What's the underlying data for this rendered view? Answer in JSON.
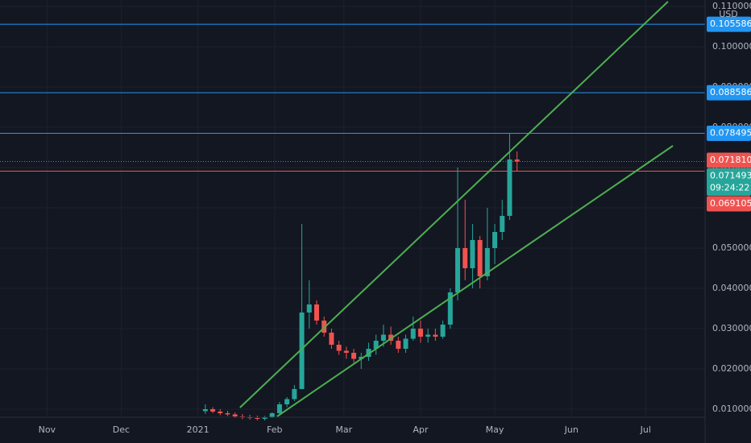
{
  "chart_data": {
    "type": "candlestick",
    "currency": "USD",
    "x": [
      64,
      67,
      70,
      73,
      76,
      79,
      82,
      85,
      88,
      91,
      94,
      97,
      100,
      103,
      106,
      109,
      112,
      115,
      118,
      121,
      124,
      127,
      130,
      133,
      136,
      139,
      142,
      145,
      148,
      151,
      154,
      157,
      160,
      163,
      166,
      169,
      172,
      175,
      178,
      181,
      184,
      187,
      190
    ],
    "open": [
      0.0095,
      0.01,
      0.0094,
      0.009,
      0.0087,
      0.0082,
      0.008,
      0.0078,
      0.0076,
      0.008,
      0.009,
      0.0112,
      0.0125,
      0.015,
      0.034,
      0.036,
      0.032,
      0.029,
      0.026,
      0.0245,
      0.024,
      0.0225,
      0.023,
      0.025,
      0.027,
      0.0285,
      0.027,
      0.025,
      0.0275,
      0.03,
      0.028,
      0.0285,
      0.028,
      0.031,
      0.039,
      0.05,
      0.045,
      0.052,
      0.043,
      0.05,
      0.054,
      0.058,
      0.072
    ],
    "high": [
      0.0112,
      0.0105,
      0.01,
      0.0096,
      0.0092,
      0.0088,
      0.0086,
      0.0084,
      0.0083,
      0.0092,
      0.0118,
      0.013,
      0.016,
      0.056,
      0.042,
      0.037,
      0.033,
      0.03,
      0.027,
      0.0255,
      0.025,
      0.024,
      0.0265,
      0.0285,
      0.031,
      0.0305,
      0.028,
      0.0285,
      0.033,
      0.032,
      0.03,
      0.03,
      0.032,
      0.04,
      0.07,
      0.062,
      0.056,
      0.053,
      0.06,
      0.056,
      0.062,
      0.0785,
      0.074
    ],
    "low": [
      0.0088,
      0.009,
      0.0085,
      0.0083,
      0.0078,
      0.0075,
      0.0074,
      0.0072,
      0.0072,
      0.0078,
      0.0088,
      0.0105,
      0.012,
      0.015,
      0.03,
      0.031,
      0.028,
      0.025,
      0.0235,
      0.0225,
      0.0215,
      0.02,
      0.022,
      0.0235,
      0.0255,
      0.026,
      0.024,
      0.024,
      0.027,
      0.0265,
      0.0265,
      0.027,
      0.0275,
      0.03,
      0.037,
      0.042,
      0.04,
      0.04,
      0.042,
      0.046,
      0.052,
      0.057,
      0.069
    ],
    "close": [
      0.01,
      0.0094,
      0.009,
      0.0087,
      0.0082,
      0.008,
      0.0078,
      0.0076,
      0.008,
      0.009,
      0.0112,
      0.0125,
      0.015,
      0.034,
      0.036,
      0.032,
      0.029,
      0.026,
      0.0245,
      0.024,
      0.0225,
      0.023,
      0.025,
      0.027,
      0.0285,
      0.027,
      0.025,
      0.0275,
      0.03,
      0.028,
      0.0285,
      0.028,
      0.031,
      0.039,
      0.05,
      0.045,
      0.052,
      0.043,
      0.05,
      0.054,
      0.058,
      0.072,
      0.0715
    ],
    "up_color": "#26a69a",
    "down_color": "#ef5350",
    "xlim": [
      -19,
      266
    ],
    "ylim": [
      0.008,
      0.1116
    ],
    "xticks": [
      {
        "value": 0,
        "label": "Nov"
      },
      {
        "value": 30,
        "label": "Dec"
      },
      {
        "value": 61,
        "label": "2021"
      },
      {
        "value": 92,
        "label": "Feb"
      },
      {
        "value": 120,
        "label": "Mar"
      },
      {
        "value": 151,
        "label": "Apr"
      },
      {
        "value": 181,
        "label": "May"
      },
      {
        "value": 212,
        "label": "Jun"
      },
      {
        "value": 242,
        "label": "Jul"
      }
    ],
    "yticks": [
      {
        "value": 0.01,
        "label": "0.010000"
      },
      {
        "value": 0.02,
        "label": "0.020000"
      },
      {
        "value": 0.03,
        "label": "0.030000"
      },
      {
        "value": 0.04,
        "label": "0.040000"
      },
      {
        "value": 0.05,
        "label": "0.050000"
      },
      {
        "value": 0.06,
        "label": "0.060000"
      },
      {
        "value": 0.07,
        "label": "0.070000"
      },
      {
        "value": 0.08,
        "label": "0.080000"
      },
      {
        "value": 0.09,
        "label": "0.090000"
      },
      {
        "value": 0.1,
        "label": "0.100000"
      },
      {
        "value": 0.11,
        "label": "0.110000"
      }
    ],
    "grid": true,
    "trend_lines": [
      {
        "color": "#4caf50",
        "x": [
          78,
          251
        ],
        "y": [
          0.0104,
          0.1112
        ]
      },
      {
        "color": "#4caf50",
        "x": [
          93,
          253
        ],
        "y": [
          0.0082,
          0.0754
        ]
      }
    ],
    "price_lines": [
      {
        "value": 0.105586,
        "label": "0.105586",
        "color": "#2196f3",
        "style": "solid"
      },
      {
        "value": 0.088586,
        "label": "0.088586",
        "color": "#2196f3",
        "style": "solid"
      },
      {
        "value": 0.078495,
        "label": "0.078495",
        "color": "#2196f3",
        "style": "solid"
      },
      {
        "value": 0.07181,
        "label": "0.071810",
        "color": "#ef5350",
        "style": "none"
      },
      {
        "value": 0.071493,
        "label": "0.071493",
        "color": "#26a69a",
        "style": "dotted",
        "countdown": "09:24:22"
      },
      {
        "value": 0.069105,
        "label": "0.069105",
        "color": "#ef5350",
        "style": "solid"
      }
    ]
  }
}
